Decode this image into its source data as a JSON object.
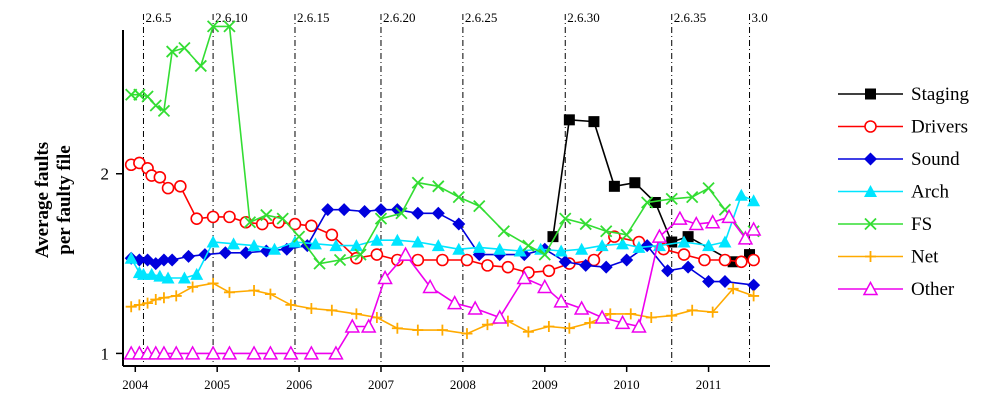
{
  "chart_data": {
    "type": "line",
    "title": "",
    "xlabel": "",
    "ylabel_lines": [
      "Average faults",
      "per faulty file"
    ],
    "xlim": [
      2003.85,
      2011.75
    ],
    "ylim": [
      0.93,
      2.8
    ],
    "x_ticks": [
      {
        "x": 2004.0,
        "label": "2004"
      },
      {
        "x": 2005.0,
        "label": "2005"
      },
      {
        "x": 2006.0,
        "label": "2006"
      },
      {
        "x": 2007.0,
        "label": "2007"
      },
      {
        "x": 2008.0,
        "label": "2008"
      },
      {
        "x": 2009.0,
        "label": "2009"
      },
      {
        "x": 2010.0,
        "label": "2010"
      },
      {
        "x": 2011.0,
        "label": "2011"
      }
    ],
    "y_ticks": [
      {
        "y": 1,
        "label": "1"
      },
      {
        "y": 2,
        "label": "2"
      }
    ],
    "versions": [
      {
        "x": 2004.1,
        "label": "2.6.5"
      },
      {
        "x": 2004.95,
        "label": "2.6.10"
      },
      {
        "x": 2005.95,
        "label": "2.6.15"
      },
      {
        "x": 2007.0,
        "label": "2.6.20"
      },
      {
        "x": 2008.0,
        "label": "2.6.25"
      },
      {
        "x": 2009.25,
        "label": "2.6.30"
      },
      {
        "x": 2010.55,
        "label": "2.6.35"
      },
      {
        "x": 2011.5,
        "label": "3.0"
      }
    ],
    "legend_position": "right",
    "series": [
      {
        "name": "Staging",
        "color": "#000000",
        "marker": "square",
        "x": [
          2009.1,
          2009.3,
          2009.6,
          2009.85,
          2010.1,
          2010.35,
          2010.55,
          2010.75,
          2011.3,
          2011.5
        ],
        "y": [
          1.65,
          2.3,
          2.29,
          1.93,
          1.95,
          1.84,
          1.62,
          1.65,
          1.51,
          1.55
        ]
      },
      {
        "name": "Drivers",
        "color": "#ff0000",
        "marker": "circle",
        "x": [
          2003.95,
          2004.05,
          2004.15,
          2004.2,
          2004.3,
          2004.4,
          2004.55,
          2004.75,
          2004.95,
          2005.15,
          2005.35,
          2005.55,
          2005.75,
          2005.95,
          2006.15,
          2006.4,
          2006.7,
          2006.95,
          2007.2,
          2007.45,
          2007.75,
          2008.05,
          2008.3,
          2008.55,
          2008.8,
          2009.05,
          2009.3,
          2009.6,
          2009.85,
          2010.15,
          2010.45,
          2010.7,
          2010.95,
          2011.2,
          2011.4,
          2011.55
        ],
        "y": [
          2.05,
          2.06,
          2.03,
          1.99,
          1.98,
          1.92,
          1.93,
          1.75,
          1.76,
          1.76,
          1.73,
          1.72,
          1.73,
          1.72,
          1.71,
          1.66,
          1.53,
          1.55,
          1.52,
          1.52,
          1.52,
          1.52,
          1.49,
          1.48,
          1.45,
          1.46,
          1.5,
          1.52,
          1.65,
          1.62,
          1.58,
          1.55,
          1.52,
          1.52,
          1.51,
          1.52
        ]
      },
      {
        "name": "Sound",
        "color": "#0000dd",
        "marker": "diamond",
        "x": [
          2003.95,
          2004.05,
          2004.15,
          2004.25,
          2004.35,
          2004.45,
          2004.65,
          2004.85,
          2005.1,
          2005.35,
          2005.6,
          2005.85,
          2006.1,
          2006.35,
          2006.55,
          2006.8,
          2007.0,
          2007.2,
          2007.45,
          2007.7,
          2007.95,
          2008.2,
          2008.45,
          2008.75,
          2009.0,
          2009.25,
          2009.5,
          2009.75,
          2010.0,
          2010.25,
          2010.5,
          2010.75,
          2011.0,
          2011.2,
          2011.55
        ],
        "y": [
          1.53,
          1.52,
          1.52,
          1.5,
          1.52,
          1.52,
          1.54,
          1.55,
          1.56,
          1.56,
          1.57,
          1.58,
          1.6,
          1.8,
          1.8,
          1.79,
          1.8,
          1.8,
          1.78,
          1.78,
          1.72,
          1.55,
          1.55,
          1.55,
          1.58,
          1.51,
          1.49,
          1.48,
          1.52,
          1.6,
          1.46,
          1.48,
          1.4,
          1.4,
          1.38
        ]
      },
      {
        "name": "Arch",
        "color": "#00e5ff",
        "marker": "triangle",
        "x": [
          2003.95,
          2004.05,
          2004.1,
          2004.2,
          2004.3,
          2004.4,
          2004.6,
          2004.75,
          2004.95,
          2005.2,
          2005.45,
          2005.7,
          2005.95,
          2006.2,
          2006.45,
          2006.7,
          2006.95,
          2007.2,
          2007.45,
          2007.7,
          2007.95,
          2008.2,
          2008.45,
          2008.7,
          2008.95,
          2009.2,
          2009.45,
          2009.7,
          2009.95,
          2010.15,
          2010.4,
          2010.7,
          2011.0,
          2011.2,
          2011.4,
          2011.55
        ],
        "y": [
          1.53,
          1.45,
          1.44,
          1.44,
          1.43,
          1.42,
          1.42,
          1.44,
          1.62,
          1.61,
          1.6,
          1.58,
          1.62,
          1.61,
          1.6,
          1.6,
          1.63,
          1.63,
          1.62,
          1.6,
          1.58,
          1.59,
          1.58,
          1.57,
          1.58,
          1.57,
          1.58,
          1.6,
          1.61,
          1.59,
          1.6,
          1.62,
          1.6,
          1.62,
          1.88,
          1.85
        ]
      },
      {
        "name": "FS",
        "color": "#33dd33",
        "marker": "x",
        "x": [
          2003.95,
          2004.05,
          2004.15,
          2004.25,
          2004.35,
          2004.45,
          2004.6,
          2004.8,
          2004.95,
          2005.15,
          2005.4,
          2005.6,
          2005.8,
          2006.0,
          2006.25,
          2006.5,
          2006.75,
          2007.0,
          2007.25,
          2007.45,
          2007.7,
          2007.95,
          2008.2,
          2008.5,
          2008.8,
          2009.0,
          2009.25,
          2009.5,
          2009.75,
          2010.0,
          2010.25,
          2010.55,
          2010.8,
          2011.0,
          2011.2,
          2011.45,
          2011.55
        ],
        "y": [
          2.44,
          2.44,
          2.43,
          2.38,
          2.35,
          2.68,
          2.7,
          2.6,
          2.82,
          2.82,
          1.73,
          1.77,
          1.75,
          1.65,
          1.5,
          1.52,
          1.55,
          1.75,
          1.78,
          1.95,
          1.93,
          1.87,
          1.82,
          1.68,
          1.6,
          1.55,
          1.75,
          1.72,
          1.68,
          1.66,
          1.84,
          1.86,
          1.87,
          1.92,
          1.8,
          1.65,
          1.68
        ]
      },
      {
        "name": "Net",
        "color": "#ffaa00",
        "marker": "plus",
        "x": [
          2003.95,
          2004.05,
          2004.15,
          2004.25,
          2004.35,
          2004.5,
          2004.7,
          2004.95,
          2005.15,
          2005.45,
          2005.65,
          2005.9,
          2006.15,
          2006.4,
          2006.7,
          2006.95,
          2007.2,
          2007.45,
          2007.75,
          2008.05,
          2008.3,
          2008.55,
          2008.8,
          2009.05,
          2009.3,
          2009.55,
          2009.8,
          2010.05,
          2010.3,
          2010.55,
          2010.8,
          2011.05,
          2011.3,
          2011.55
        ],
        "y": [
          1.26,
          1.27,
          1.28,
          1.3,
          1.31,
          1.32,
          1.37,
          1.39,
          1.34,
          1.35,
          1.33,
          1.27,
          1.25,
          1.24,
          1.22,
          1.2,
          1.14,
          1.13,
          1.13,
          1.11,
          1.16,
          1.18,
          1.12,
          1.15,
          1.14,
          1.17,
          1.22,
          1.22,
          1.2,
          1.21,
          1.24,
          1.23,
          1.36,
          1.32
        ]
      },
      {
        "name": "Other",
        "color": "#ee00ee",
        "marker": "triangle-open",
        "x": [
          2003.95,
          2004.05,
          2004.15,
          2004.25,
          2004.35,
          2004.5,
          2004.7,
          2004.95,
          2005.15,
          2005.45,
          2005.65,
          2005.9,
          2006.15,
          2006.45,
          2006.65,
          2006.85,
          2007.05,
          2007.3,
          2007.6,
          2007.9,
          2008.15,
          2008.45,
          2008.75,
          2009.0,
          2009.2,
          2009.45,
          2009.7,
          2009.95,
          2010.15,
          2010.4,
          2010.65,
          2010.85,
          2011.05,
          2011.25,
          2011.45,
          2011.55
        ],
        "y": [
          1.0,
          1.0,
          1.0,
          1.0,
          1.0,
          1.0,
          1.0,
          1.0,
          1.0,
          1.0,
          1.0,
          1.0,
          1.0,
          1.0,
          1.15,
          1.15,
          1.42,
          1.55,
          1.37,
          1.28,
          1.25,
          1.2,
          1.42,
          1.37,
          1.29,
          1.25,
          1.2,
          1.17,
          1.15,
          1.65,
          1.75,
          1.72,
          1.73,
          1.76,
          1.64,
          1.69
        ]
      }
    ]
  }
}
